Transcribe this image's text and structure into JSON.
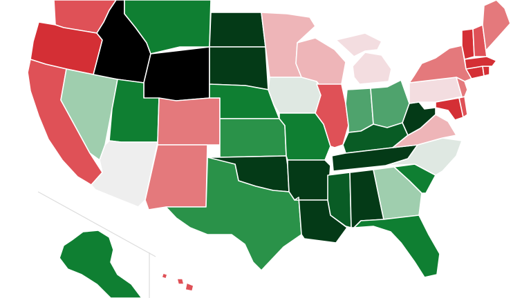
{
  "map": {
    "type": "choropleth",
    "region": "United States",
    "palette": {
      "strong-red": "#d42f35",
      "red": "#df5157",
      "medium-red": "#e4797c",
      "light-red": "#eeb5b8",
      "faint-red": "#f3dde0",
      "neutral": "#eeeeee",
      "faint-green": "#dfe8e2",
      "light-green": "#9fceae",
      "medium-green": "#4fa36d",
      "green": "#2a9249",
      "strong-green": "#0f7f32",
      "dark-green": "#095c25",
      "darker-green": "#043a17",
      "black": "#000000"
    },
    "states": [
      {
        "id": "WA",
        "color": "#df5157"
      },
      {
        "id": "OR",
        "color": "#d42f35"
      },
      {
        "id": "CA",
        "color": "#df5157"
      },
      {
        "id": "ID",
        "color": "#000000"
      },
      {
        "id": "NV",
        "color": "#9fceae"
      },
      {
        "id": "MT",
        "color": "#0f7f32"
      },
      {
        "id": "WY",
        "color": "#000000"
      },
      {
        "id": "UT",
        "color": "#0f7f32"
      },
      {
        "id": "AZ",
        "color": "#eeeeee"
      },
      {
        "id": "CO",
        "color": "#e4797c"
      },
      {
        "id": "NM",
        "color": "#e4797c"
      },
      {
        "id": "ND",
        "color": "#043a17"
      },
      {
        "id": "SD",
        "color": "#043a17"
      },
      {
        "id": "NE",
        "color": "#0f7f32"
      },
      {
        "id": "KS",
        "color": "#2a9249"
      },
      {
        "id": "OK",
        "color": "#043a17"
      },
      {
        "id": "TX",
        "color": "#2a9249"
      },
      {
        "id": "MN",
        "color": "#eeb5b8"
      },
      {
        "id": "IA",
        "color": "#dfe8e2"
      },
      {
        "id": "MO",
        "color": "#0f7f32"
      },
      {
        "id": "AR",
        "color": "#043a17"
      },
      {
        "id": "LA",
        "color": "#043a17"
      },
      {
        "id": "WI",
        "color": "#eeb5b8"
      },
      {
        "id": "IL",
        "color": "#df5157"
      },
      {
        "id": "MI",
        "color": "#f3dde0"
      },
      {
        "id": "IN",
        "color": "#4fa36d"
      },
      {
        "id": "OH",
        "color": "#4fa36d"
      },
      {
        "id": "KY",
        "color": "#095c25"
      },
      {
        "id": "TN",
        "color": "#043a17"
      },
      {
        "id": "MS",
        "color": "#095c25"
      },
      {
        "id": "AL",
        "color": "#043a17"
      },
      {
        "id": "GA",
        "color": "#9fceae"
      },
      {
        "id": "FL",
        "color": "#0f7f32"
      },
      {
        "id": "SC",
        "color": "#0f7f32"
      },
      {
        "id": "NC",
        "color": "#dfe8e2"
      },
      {
        "id": "VA",
        "color": "#eeb5b8"
      },
      {
        "id": "WV",
        "color": "#043a17"
      },
      {
        "id": "PA",
        "color": "#f3dde0"
      },
      {
        "id": "NY",
        "color": "#e4797c"
      },
      {
        "id": "MD",
        "color": "#d42f35"
      },
      {
        "id": "DE",
        "color": "#df5157"
      },
      {
        "id": "NJ",
        "color": "#e4797c"
      },
      {
        "id": "CT",
        "color": "#d42f35"
      },
      {
        "id": "RI",
        "color": "#d42f35"
      },
      {
        "id": "MA",
        "color": "#d42f35"
      },
      {
        "id": "VT",
        "color": "#d42f35"
      },
      {
        "id": "NH",
        "color": "#df5157"
      },
      {
        "id": "ME",
        "color": "#e4797c"
      },
      {
        "id": "AK",
        "color": "#0f7f32"
      },
      {
        "id": "HI",
        "color": "#df5157"
      }
    ]
  }
}
